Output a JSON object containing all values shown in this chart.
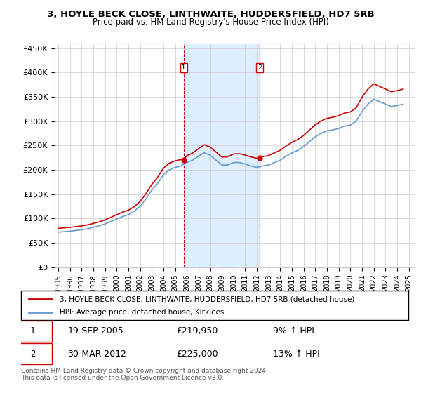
{
  "title": "3, HOYLE BECK CLOSE, LINTHWAITE, HUDDERSFIELD, HD7 5RB",
  "subtitle": "Price paid vs. HM Land Registry's House Price Index (HPI)",
  "legend_line1": "3, HOYLE BECK CLOSE, LINTHWAITE, HUDDERSFIELD, HD7 5RB (detached house)",
  "legend_line2": "HPI: Average price, detached house, Kirklees",
  "sale1_label": "1",
  "sale1_date": "19-SEP-2005",
  "sale1_price": "£219,950",
  "sale1_hpi": "9% ↑ HPI",
  "sale2_label": "2",
  "sale2_date": "30-MAR-2012",
  "sale2_price": "£225,000",
  "sale2_hpi": "13% ↑ HPI",
  "footnote": "Contains HM Land Registry data © Crown copyright and database right 2024.\nThis data is licensed under the Open Government Licence v3.0.",
  "red_color": "#cc0000",
  "blue_color": "#6699cc",
  "shade_color": "#ddeeff",
  "grid_color": "#cccccc",
  "sale1_year": 2005.72,
  "sale1_value": 219950,
  "sale2_year": 2012.25,
  "sale2_value": 225000,
  "ylim": [
    0,
    460000
  ],
  "xlim_start": 1995,
  "xlim_end": 2025.5
}
